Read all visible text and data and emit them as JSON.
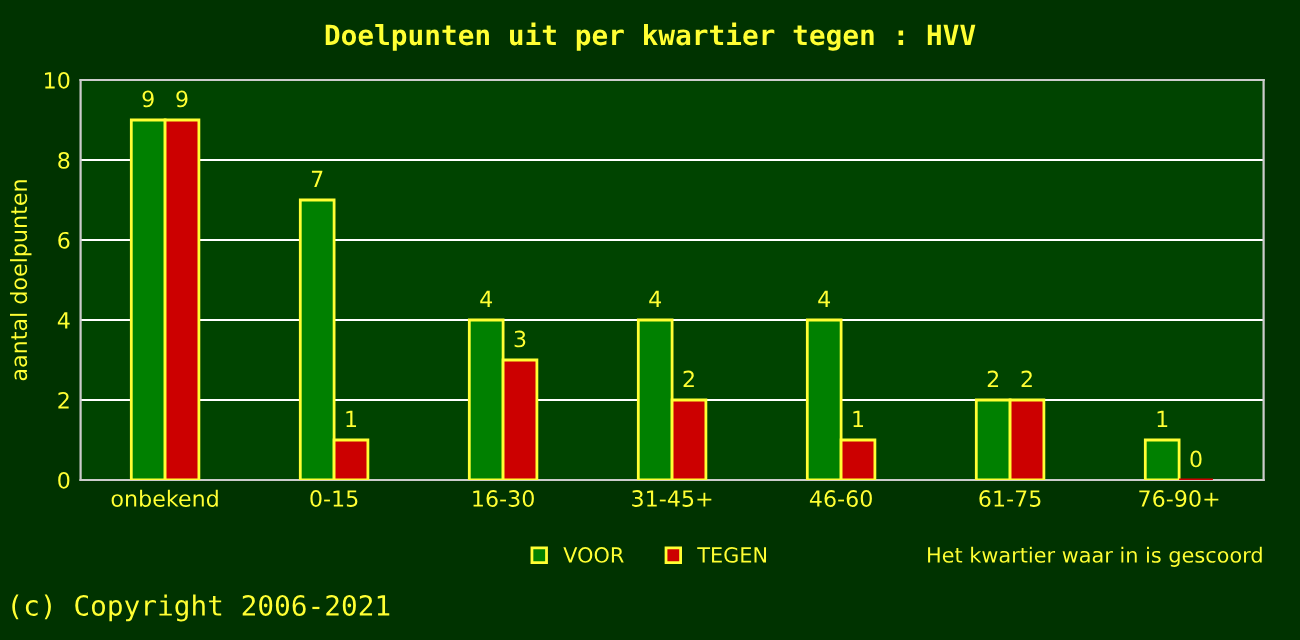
{
  "chart_data": {
    "type": "bar",
    "title": "Doelpunten uit per kwartier tegen : HVV",
    "categories": [
      "onbekend",
      "0-15",
      "16-30",
      "31-45+",
      "46-60",
      "61-75",
      "76-90+"
    ],
    "series": [
      {
        "name": "VOOR",
        "color": "#008000",
        "values": [
          9,
          7,
          4,
          4,
          4,
          2,
          1
        ]
      },
      {
        "name": "TEGEN",
        "color": "#cc0000",
        "values": [
          9,
          1,
          3,
          2,
          1,
          2,
          0
        ]
      }
    ],
    "xlabel": "Het kwartier waar in is gescoord",
    "ylabel": "aantal doelpunten",
    "ylim": [
      0,
      10
    ],
    "yticks": [
      0,
      2,
      4,
      6,
      8,
      10
    ],
    "grid": "y",
    "legend": "bottom",
    "data_labels": true,
    "annotations": [
      "(c) Copyright 2006-2021"
    ]
  }
}
